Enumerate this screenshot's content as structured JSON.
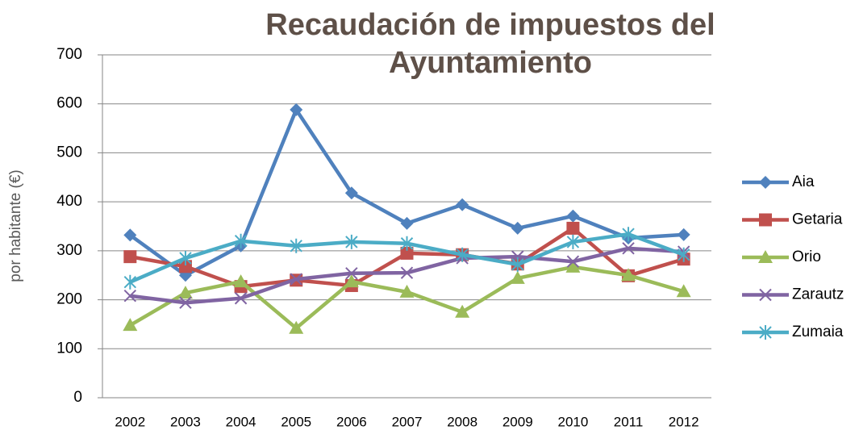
{
  "chart_data": {
    "type": "line",
    "title": "Recaudación de impuestos del Ayuntamiento",
    "y_label": "por habitante (€)",
    "categories": [
      "2002",
      "2003",
      "2004",
      "2005",
      "2006",
      "2007",
      "2008",
      "2009",
      "2010",
      "2011",
      "2012"
    ],
    "series": [
      {
        "name": "Aia",
        "color": "#4f81bd",
        "marker": "diamond",
        "values": [
          332,
          250,
          310,
          588,
          418,
          356,
          394,
          346,
          371,
          326,
          333
        ]
      },
      {
        "name": "Getaria",
        "color": "#c0504d",
        "marker": "square",
        "values": [
          288,
          268,
          227,
          240,
          229,
          295,
          292,
          273,
          346,
          249,
          283
        ]
      },
      {
        "name": "Orio",
        "color": "#9bbb59",
        "marker": "triangle",
        "values": [
          148,
          214,
          237,
          142,
          237,
          216,
          175,
          244,
          267,
          250,
          217
        ]
      },
      {
        "name": "Zarautz",
        "color": "#8064a2",
        "marker": "x",
        "values": [
          208,
          194,
          203,
          242,
          254,
          255,
          285,
          288,
          278,
          305,
          298
        ]
      },
      {
        "name": "Zumaia",
        "color": "#4bacc6",
        "marker": "star",
        "values": [
          236,
          285,
          320,
          310,
          318,
          315,
          292,
          272,
          318,
          334,
          292
        ]
      }
    ],
    "ylim": [
      0,
      700
    ],
    "yticks": [
      0,
      100,
      200,
      300,
      400,
      500,
      600,
      700
    ],
    "grid": true,
    "legend": "right"
  }
}
